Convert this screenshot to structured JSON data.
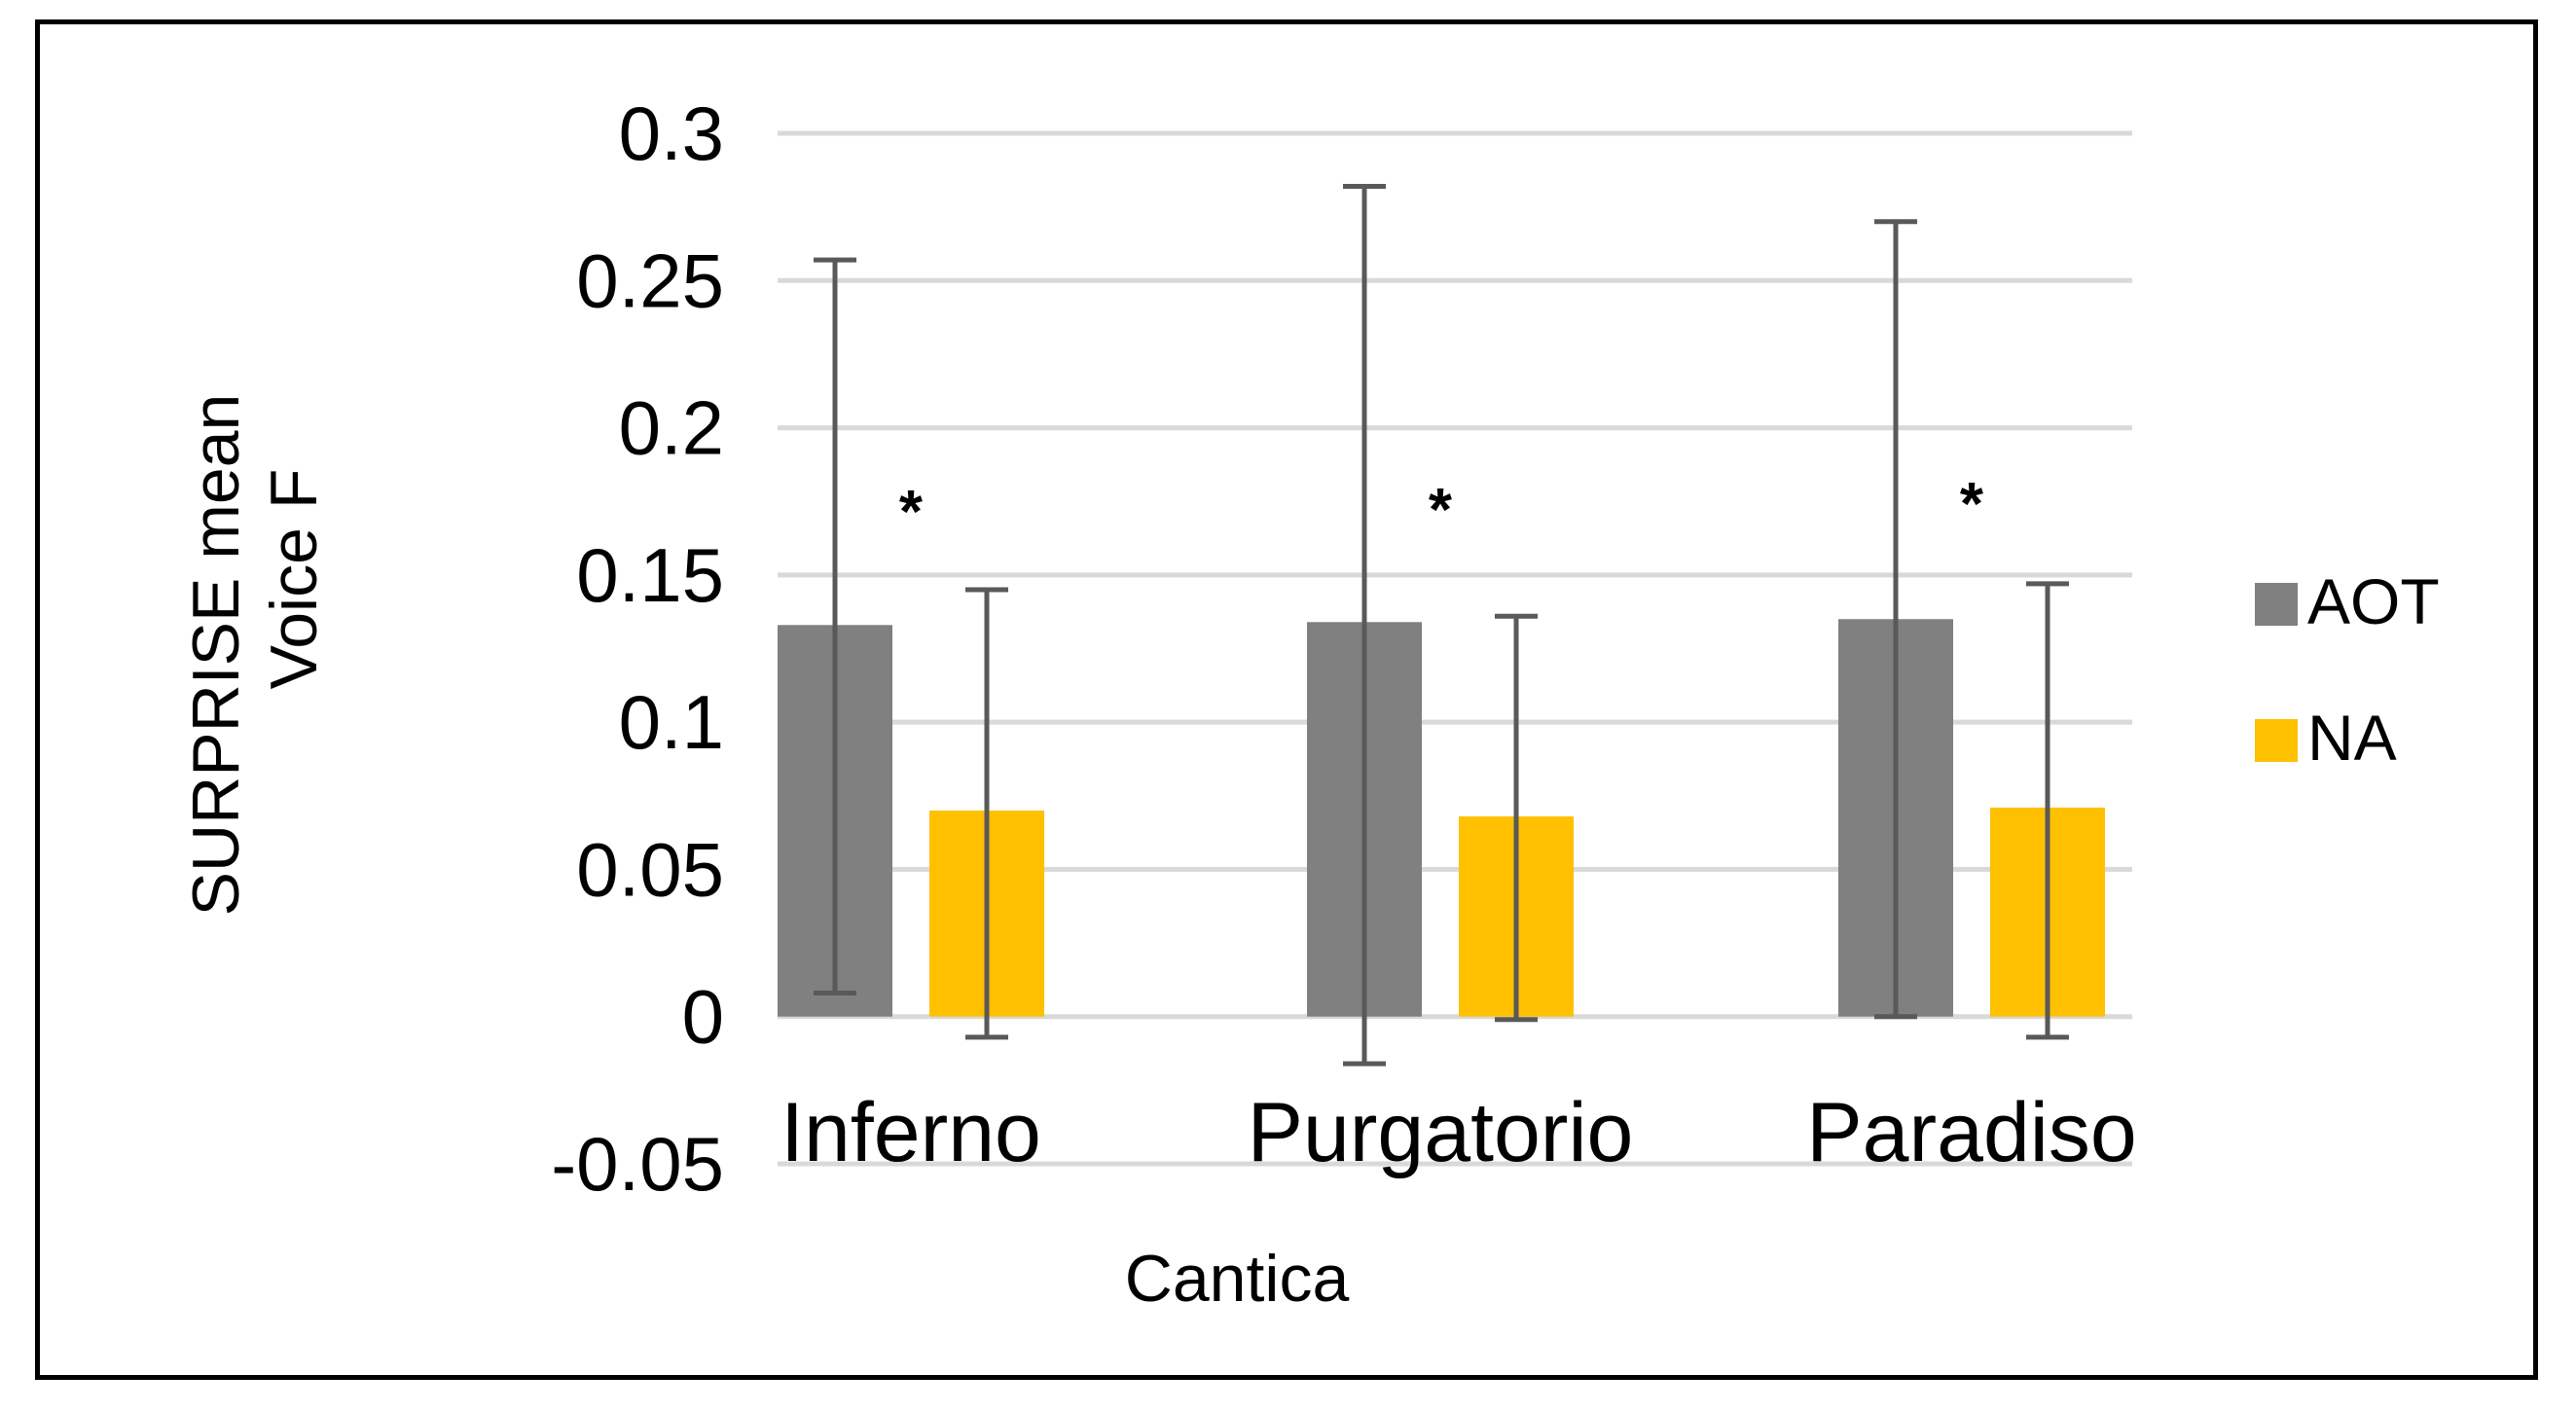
{
  "chart_data": {
    "type": "bar",
    "title": "",
    "xlabel": "Cantica",
    "ylabel_lines": [
      "SURPRISE mean",
      "Voice F"
    ],
    "categories": [
      "Inferno",
      "Purgatorio",
      "Paradiso"
    ],
    "ylim": [
      -0.05,
      0.3
    ],
    "yticks": [
      -0.05,
      0,
      0.05,
      0.1,
      0.15,
      0.2,
      0.25,
      0.3
    ],
    "ytick_labels": [
      "-0.05",
      "0",
      "0.05",
      "0.1",
      "0.15",
      "0.2",
      "0.25",
      "0.3"
    ],
    "grid": true,
    "legend_position": "right",
    "series": [
      {
        "name": "AOT",
        "color": "#808080",
        "values": [
          0.133,
          0.134,
          0.135
        ],
        "error_low": [
          0.008,
          -0.016,
          0.0
        ],
        "error_high": [
          0.257,
          0.282,
          0.27
        ]
      },
      {
        "name": "NA",
        "color": "#FFC000",
        "values": [
          0.07,
          0.068,
          0.071
        ],
        "error_low": [
          -0.007,
          -0.001,
          -0.007
        ],
        "error_high": [
          0.145,
          0.136,
          0.147
        ]
      }
    ],
    "annotations": [
      "*",
      "*",
      "*"
    ],
    "gridline_color": "#D9D9D9",
    "errorbar_color": "#595959"
  }
}
